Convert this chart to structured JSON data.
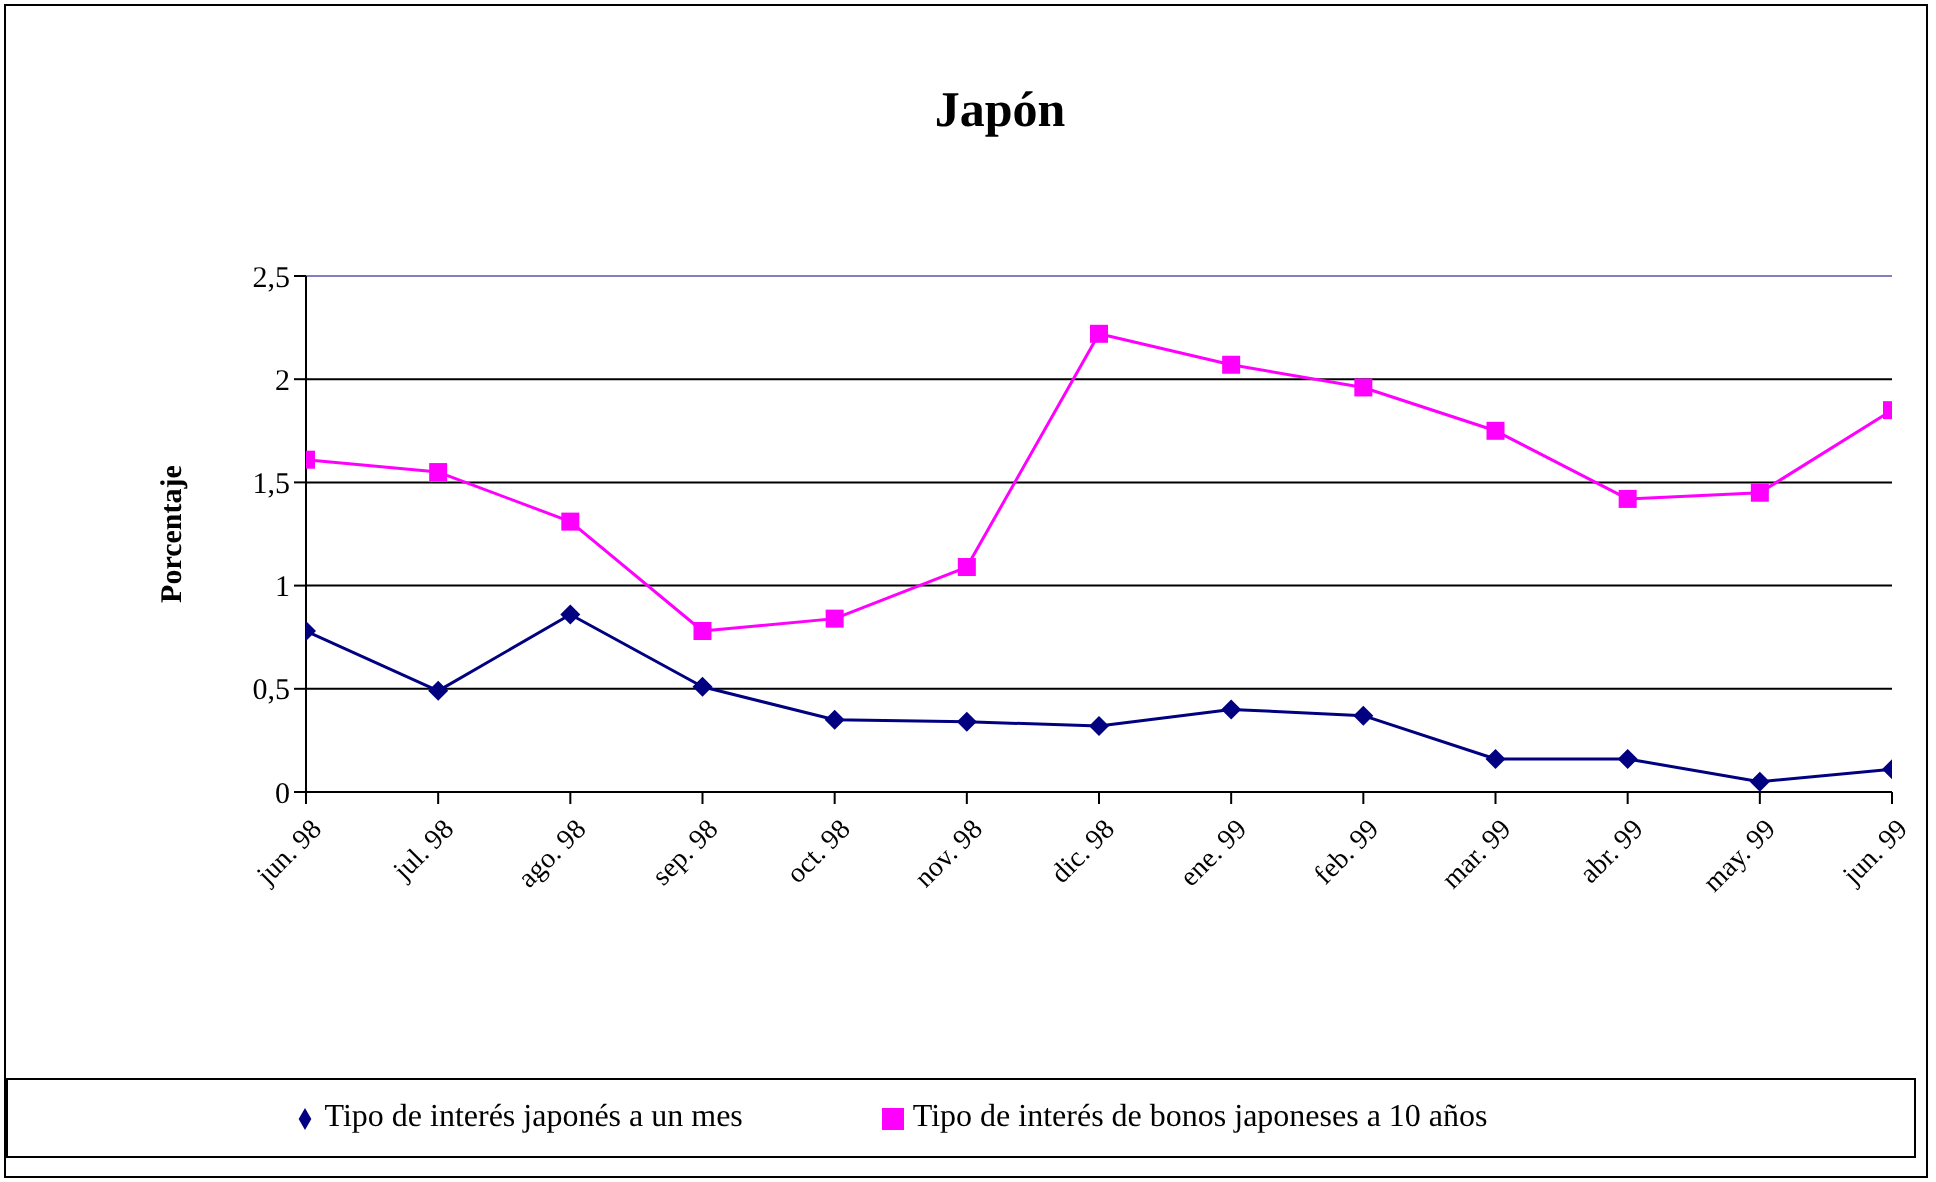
{
  "chart_data": {
    "type": "line",
    "title": "Japón",
    "ylabel": "Porcentaje",
    "categories": [
      "jun. 98",
      "jul. 98",
      "ago. 98",
      "sep. 98",
      "oct. 98",
      "nov. 98",
      "dic. 98",
      "ene. 99",
      "feb. 99",
      "mar. 99",
      "abr. 99",
      "may. 99",
      "jun. 99"
    ],
    "series": [
      {
        "name": "Tipo de interés japonés a un mes",
        "color": "#000080",
        "marker": "diamond",
        "values": [
          0.78,
          0.49,
          0.86,
          0.51,
          0.35,
          0.34,
          0.32,
          0.4,
          0.37,
          0.16,
          0.16,
          0.05,
          0.11
        ]
      },
      {
        "name": "Tipo de interés de bonos japoneses a 10 años",
        "color": "#ff00ff",
        "marker": "square",
        "values": [
          1.61,
          1.55,
          1.31,
          0.78,
          0.84,
          1.09,
          2.22,
          2.07,
          1.96,
          1.75,
          1.42,
          1.45,
          1.85
        ]
      }
    ],
    "ylim": [
      0,
      2.5
    ],
    "yticks": [
      0,
      {
        "value": 0.5,
        "label": "0,5"
      },
      1,
      {
        "value": 1.5,
        "label": "1,5"
      },
      2,
      {
        "value": 2.5,
        "label": "2,5"
      }
    ],
    "grid": "y",
    "legend": "bottom"
  }
}
